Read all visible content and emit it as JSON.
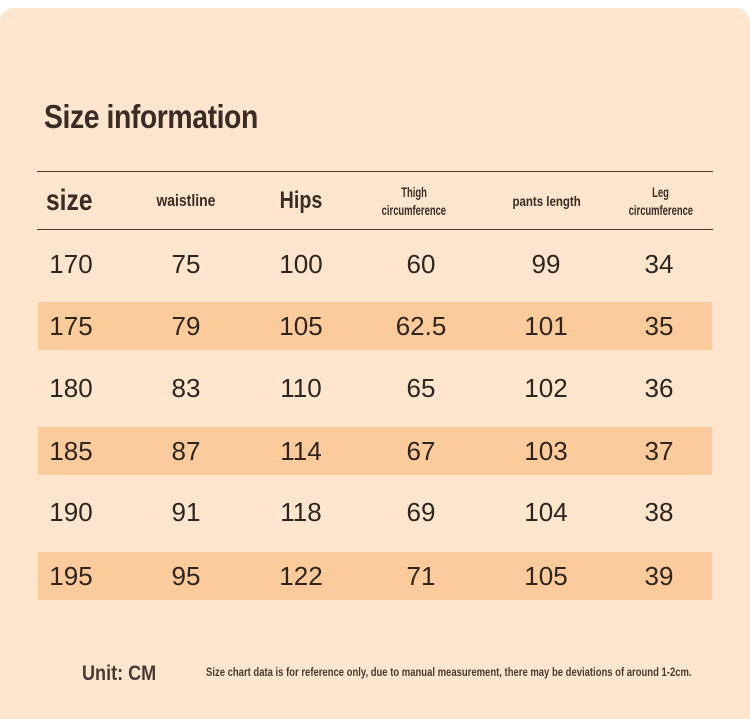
{
  "title": "Size information",
  "headers": {
    "size": "size",
    "waist": "waistline",
    "hips": "Hips",
    "thigh_l1": "Thigh",
    "thigh_l2": "circumference",
    "pants": "pants length",
    "leg_l1": "Leg",
    "leg_l2": "circumference"
  },
  "rows": [
    [
      "170",
      "75",
      "100",
      "60",
      "99",
      "34"
    ],
    [
      "175",
      "79",
      "105",
      "62.5",
      "101",
      "35"
    ],
    [
      "180",
      "83",
      "110",
      "65",
      "102",
      "36"
    ],
    [
      "185",
      "87",
      "114",
      "67",
      "103",
      "37"
    ],
    [
      "190",
      "91",
      "118",
      "69",
      "104",
      "38"
    ],
    [
      "195",
      "95",
      "122",
      "71",
      "105",
      "39"
    ]
  ],
  "unit": "Unit: CM",
  "note": "Size chart data is for reference only, due to manual measurement, there may be deviations of around 1-2cm.",
  "colors": {
    "background": "#fde6cd",
    "row_shade": "#fccb9b",
    "text": "#3b2b24"
  }
}
